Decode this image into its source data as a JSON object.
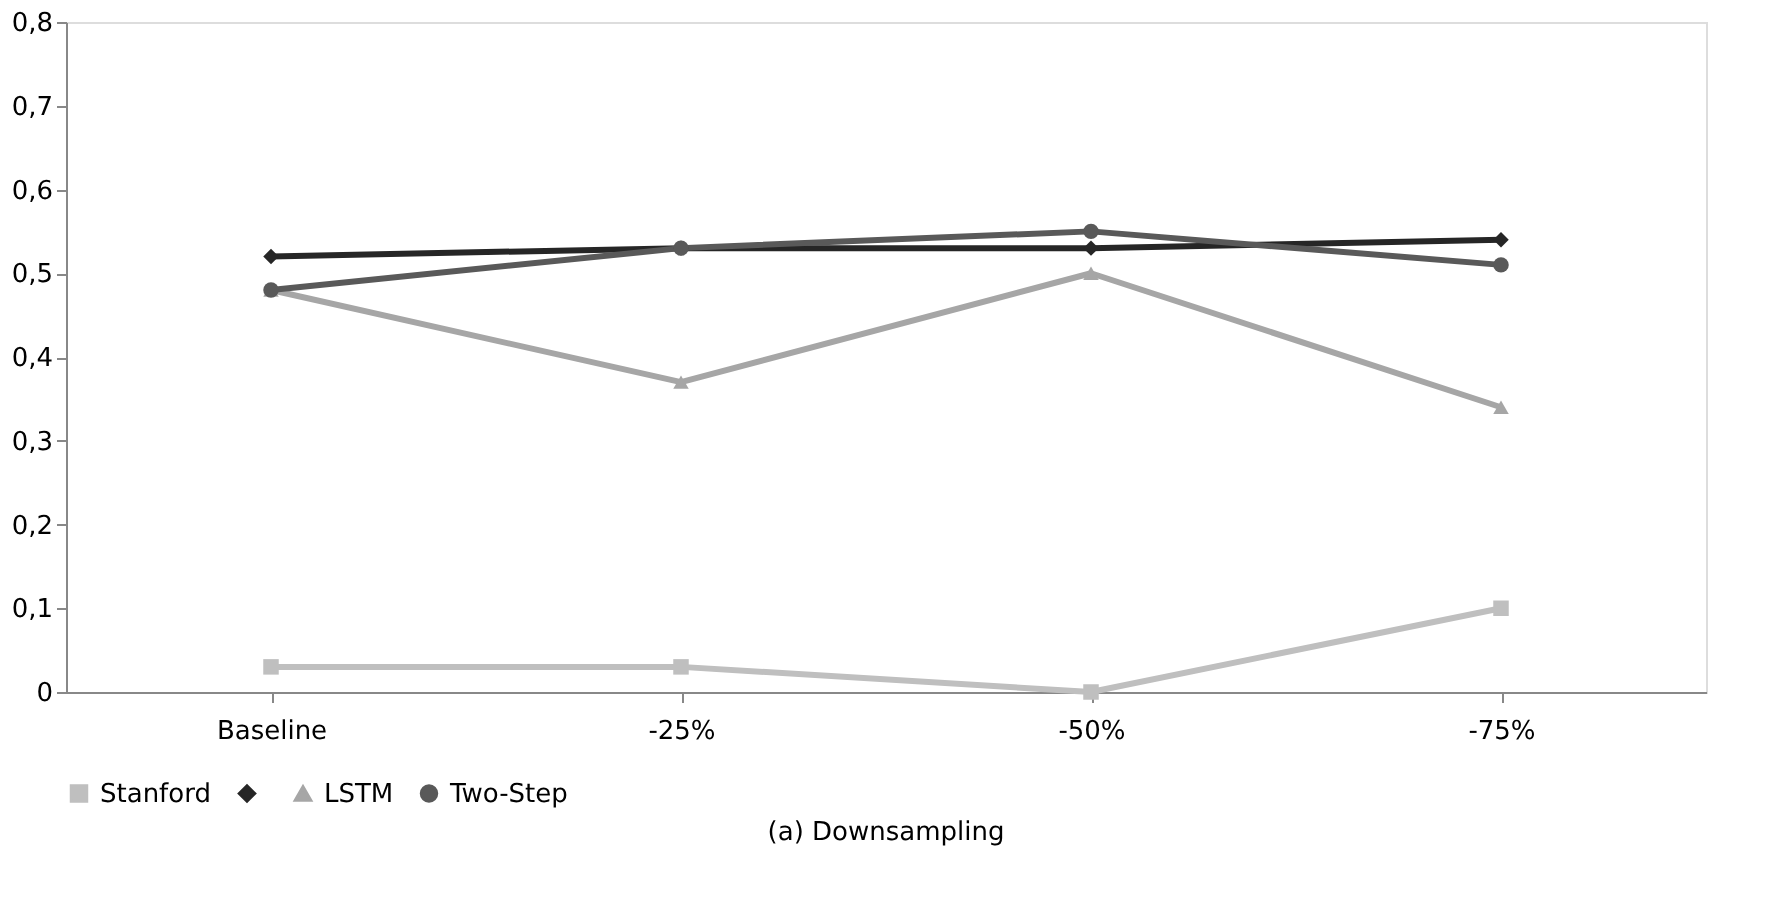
{
  "chart_data": {
    "type": "line",
    "categories": [
      "Baseline",
      "-25%",
      "-50%",
      "-75%"
    ],
    "series": [
      {
        "name": "Stanford",
        "color": "#bfbfbf",
        "marker": "square",
        "values": [
          0.03,
          0.03,
          0.0,
          0.1
        ]
      },
      {
        "color": "#262626",
        "marker": "diamond",
        "values": [
          0.52,
          0.53,
          0.53,
          0.54
        ]
      },
      {
        "name": "LSTM",
        "color": "#a6a6a6",
        "marker": "triangle",
        "values": [
          0.48,
          0.37,
          0.5,
          0.34
        ]
      },
      {
        "name": "Two-Step",
        "color": "#595959",
        "marker": "circle",
        "values": [
          0.48,
          0.53,
          0.55,
          0.51
        ]
      }
    ],
    "ylim": [
      0,
      0.8
    ],
    "yticks": [
      {
        "value": 0,
        "label": "0"
      },
      {
        "value": 0.1,
        "label": "0,1"
      },
      {
        "value": 0.2,
        "label": "0,2"
      },
      {
        "value": 0.3,
        "label": "0,3"
      },
      {
        "value": 0.4,
        "label": "0,4"
      },
      {
        "value": 0.5,
        "label": "0,5"
      },
      {
        "value": 0.6,
        "label": "0,6"
      },
      {
        "value": 0.7,
        "label": "0,7"
      },
      {
        "value": 0.8,
        "label": "0,8"
      }
    ],
    "grid": false,
    "legend": "bottom",
    "line_style": "solid",
    "annotations": [
      "(a) Downsampling"
    ]
  }
}
